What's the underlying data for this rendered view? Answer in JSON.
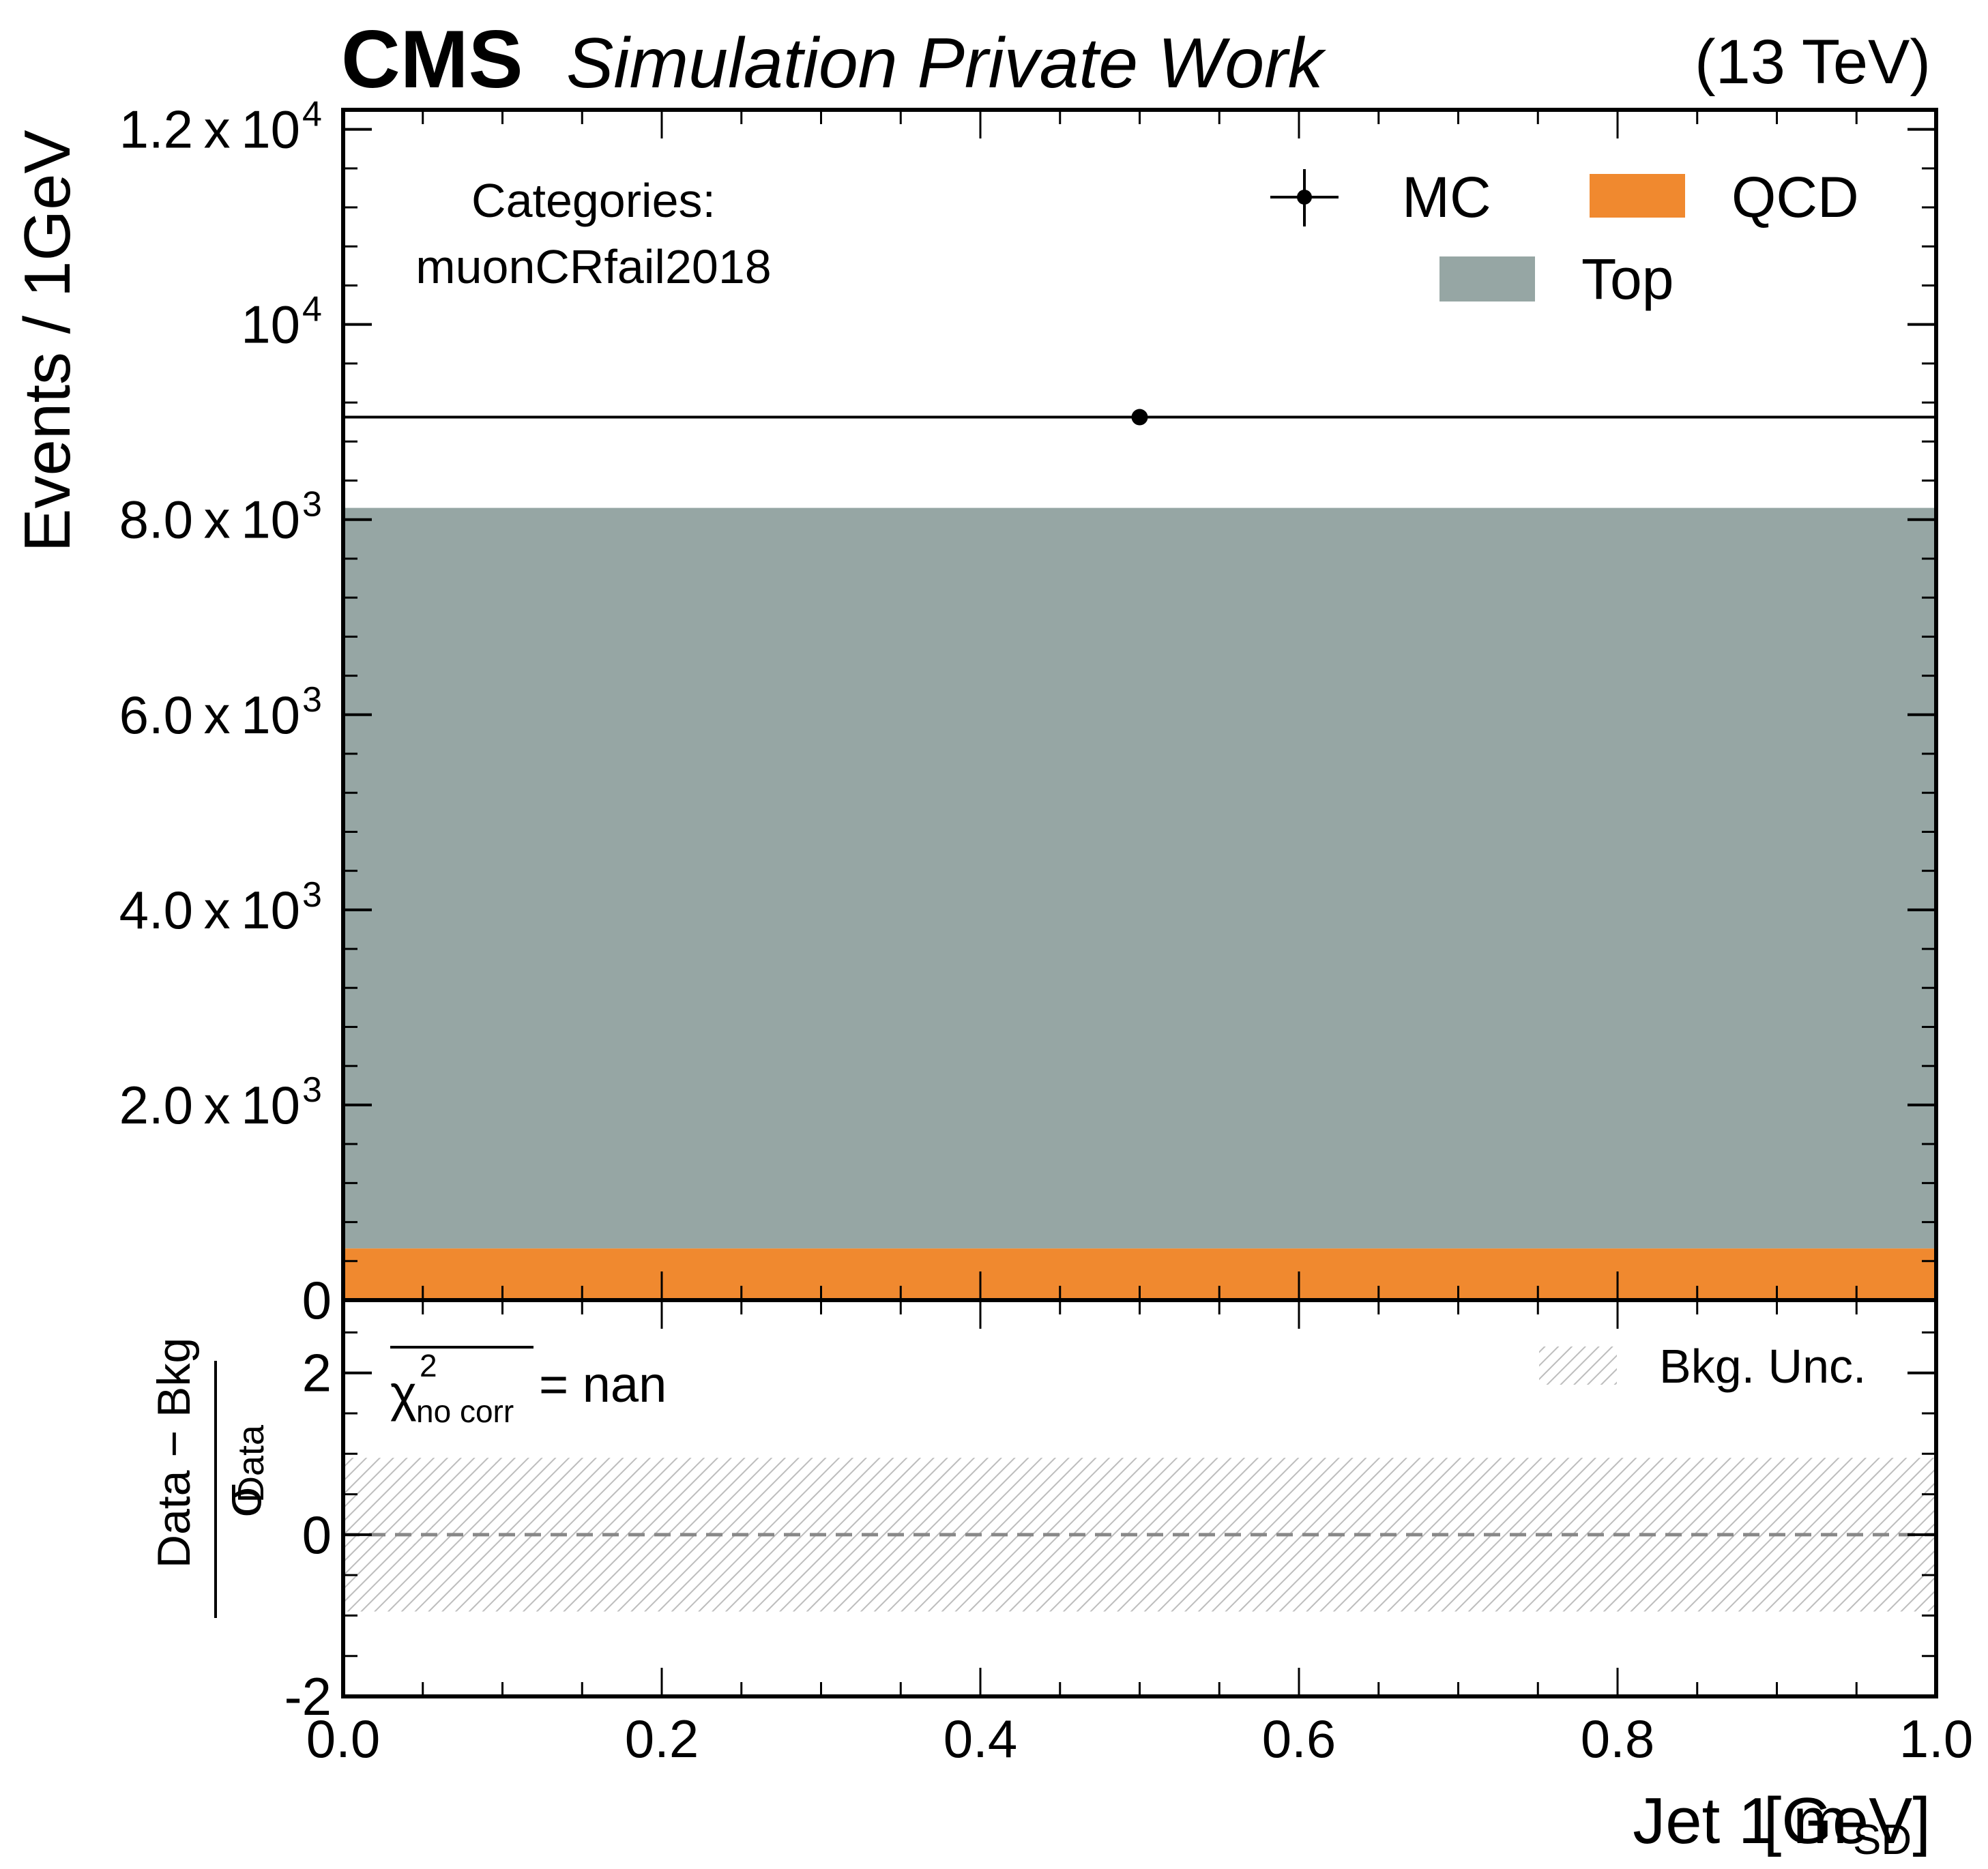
{
  "header": {
    "cms": "CMS",
    "label": "Simulation Private Work",
    "energy": "(13 TeV)"
  },
  "category": {
    "title": "Categories:",
    "name": "muonCRfail2018"
  },
  "colors": {
    "qcd": "#f0892f",
    "top": "#96a6a4",
    "mc": "#000000",
    "unc": "#bdbdbd",
    "zero_line": "#888888"
  },
  "chart_data": [
    {
      "type": "bar",
      "panel": "main",
      "stacked": true,
      "x_edges": [
        0.0,
        1.0
      ],
      "series": [
        {
          "name": "QCD",
          "values": [
            530
          ]
        },
        {
          "name": "Top",
          "values": [
            7590
          ]
        }
      ],
      "points": [
        {
          "name": "MC",
          "x": 0.5,
          "y": 9050,
          "xerr": 0.5
        }
      ],
      "ylabel": "Events / 1GeV",
      "ylim": [
        0,
        12200
      ],
      "xlim": [
        0.0,
        1.0
      ],
      "y_tick_labels": [
        {
          "value": 0,
          "mant": "0",
          "exp": ""
        },
        {
          "value": 2000,
          "mant": "2.0 x 10",
          "exp": "3"
        },
        {
          "value": 4000,
          "mant": "4.0 x 10",
          "exp": "3"
        },
        {
          "value": 6000,
          "mant": "6.0 x 10",
          "exp": "3"
        },
        {
          "value": 8000,
          "mant": "8.0 x 10",
          "exp": "3"
        },
        {
          "value": 10000,
          "mant": "10",
          "exp": "4"
        },
        {
          "value": 12000,
          "mant": "1.2 x 10",
          "exp": "4"
        }
      ],
      "legend": {
        "position": "top-right",
        "entries": [
          "MC",
          "QCD",
          "Top"
        ]
      }
    },
    {
      "type": "area",
      "panel": "pull",
      "series": [
        {
          "name": "Bkg. Unc.",
          "lower": [
            -0.95
          ],
          "upper": [
            0.95
          ]
        }
      ],
      "x_edges": [
        0.0,
        1.0
      ],
      "reference_line": 0,
      "ylabel_num": "Data − Bkg",
      "ylabel_den": "σ",
      "ylabel_den_sub": "Data",
      "ylim": [
        -2,
        2.9
      ],
      "y_ticks": [
        -2,
        0,
        2
      ],
      "y_tick_labels": [
        "-2",
        "0",
        "2"
      ],
      "xlabel": "Jet 1 m",
      "xlabel_sub": "SD",
      "xlabel_unit": " [GeV]",
      "x_ticks": [
        0.0,
        0.2,
        0.4,
        0.6,
        0.8,
        1.0
      ],
      "x_tick_labels": [
        "0.0",
        "0.2",
        "0.4",
        "0.6",
        "0.8",
        "1.0"
      ],
      "chi2": {
        "symbol": "χ",
        "sup": "2",
        "sub": "no corr",
        "value": " = nan"
      },
      "legend": {
        "position": "top-right",
        "entries": [
          "Bkg. Unc."
        ]
      }
    }
  ]
}
